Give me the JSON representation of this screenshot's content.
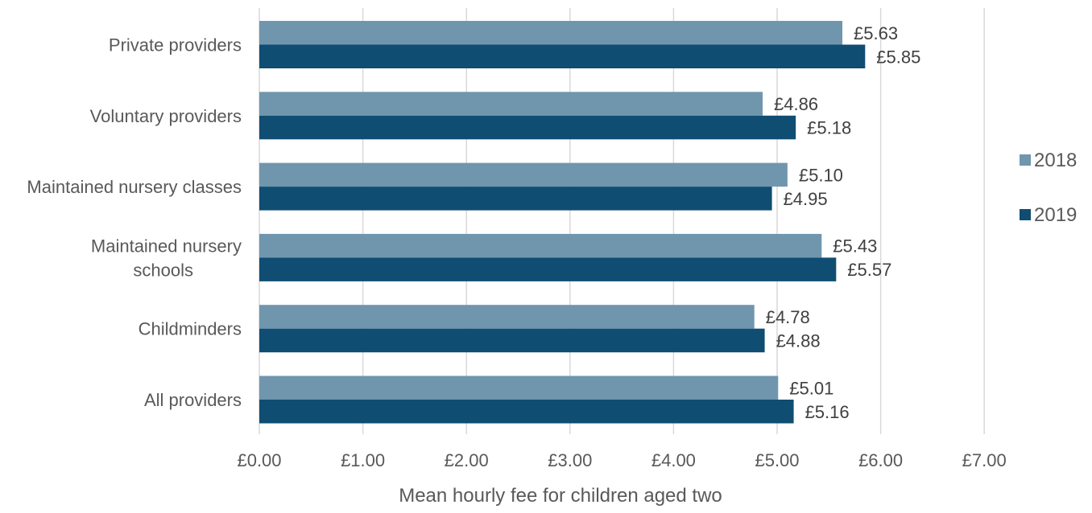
{
  "chart_data": {
    "type": "bar",
    "orientation": "horizontal",
    "categories": [
      "Private providers",
      "Voluntary providers",
      "Maintained nursery classes",
      "Maintained nursery schools",
      "Childminders",
      "All providers"
    ],
    "category_lines": [
      [
        "Private providers"
      ],
      [
        "Voluntary providers"
      ],
      [
        "Maintained nursery classes"
      ],
      [
        "Maintained nursery",
        "schools"
      ],
      [
        "Childminders"
      ],
      [
        "All providers"
      ]
    ],
    "series": [
      {
        "name": "2018",
        "color": "#7096ae",
        "values": [
          5.63,
          4.86,
          5.1,
          5.43,
          4.78,
          5.01
        ],
        "labels": [
          "£5.63",
          "£4.86",
          "£5.10",
          "£5.43",
          "£4.78",
          "£5.01"
        ]
      },
      {
        "name": "2019",
        "color": "#104d72",
        "values": [
          5.85,
          5.18,
          4.95,
          5.57,
          4.88,
          5.16
        ],
        "labels": [
          "£5.85",
          "£5.18",
          "£4.95",
          "£5.57",
          "£4.88",
          "£5.16"
        ]
      }
    ],
    "xlabel": "Mean hourly fee for children aged two",
    "ylabel": "",
    "xlim": [
      0,
      7
    ],
    "x_ticks": [
      "£0.00",
      "£1.00",
      "£2.00",
      "£3.00",
      "£4.00",
      "£5.00",
      "£6.00",
      "£7.00"
    ],
    "grid": true,
    "legend_position": "right"
  }
}
